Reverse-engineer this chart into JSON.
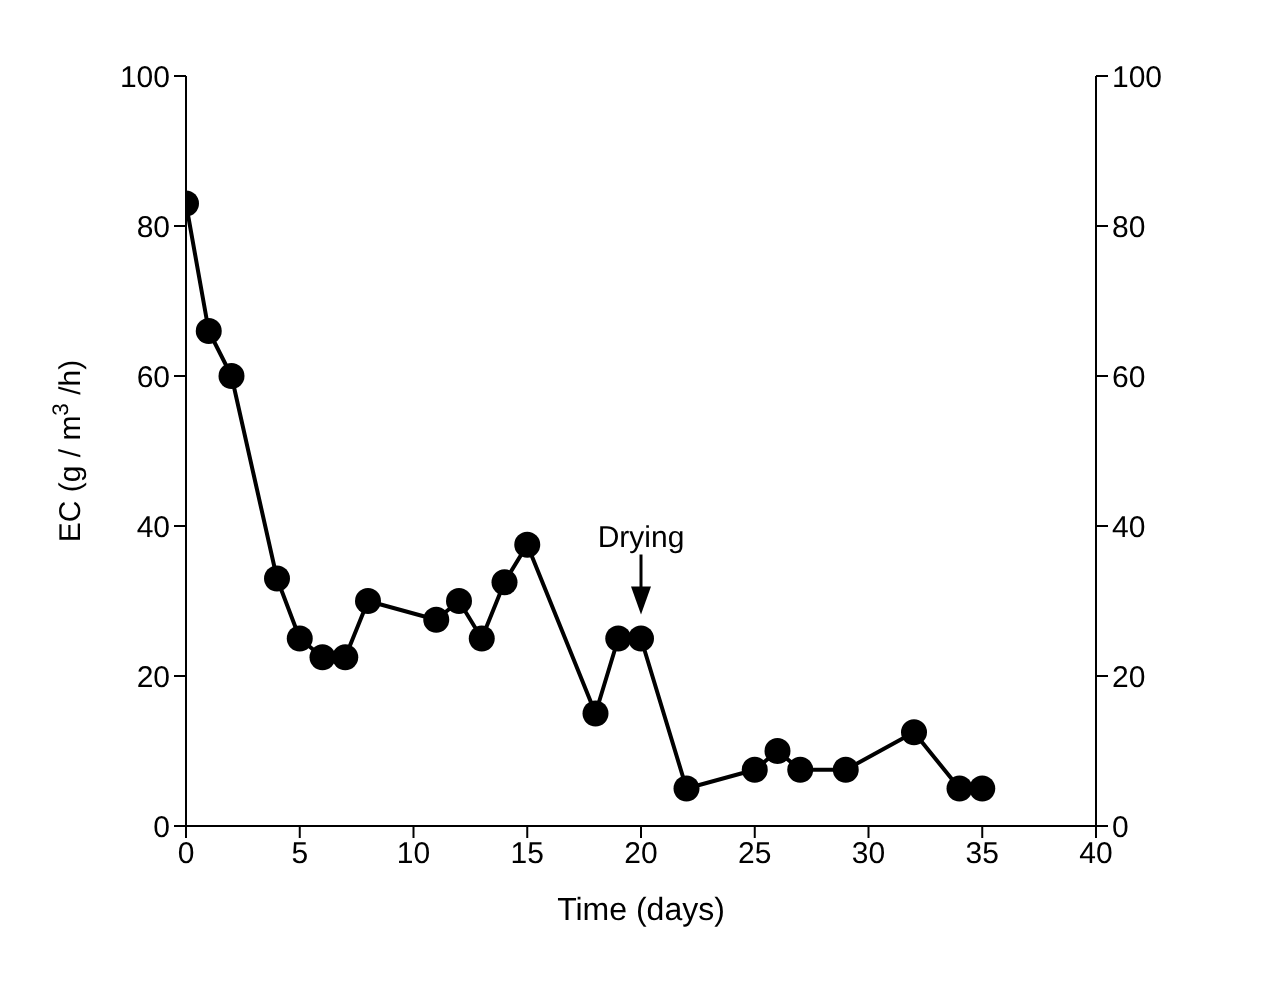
{
  "chart_data": {
    "type": "line",
    "xlabel": "Time (days)",
    "ylabel": "EC (g / m$^{3}$ /h)",
    "x": [
      0,
      1,
      2,
      4,
      5,
      6,
      7,
      8,
      11,
      12,
      13,
      14,
      15,
      18,
      19,
      20,
      22,
      25,
      26,
      27,
      29,
      32,
      34,
      35
    ],
    "series": [
      {
        "color": "#000000",
        "values": [
          83,
          66,
          60,
          33,
          25,
          22.5,
          22.5,
          30,
          27.5,
          30,
          25,
          32.5,
          37.5,
          15,
          25,
          25,
          5,
          7.5,
          10,
          7.5,
          7.5,
          12.5,
          5,
          5
        ]
      }
    ],
    "xlim": [
      0,
      40
    ],
    "xticks": [
      0,
      5,
      10,
      15,
      20,
      25,
      30,
      35,
      40
    ],
    "ylim": [
      0,
      100
    ],
    "yticks": [
      0,
      20,
      40,
      60,
      80,
      100
    ],
    "y2lim": [
      0,
      100
    ],
    "y2ticks": [
      0,
      20,
      40,
      60,
      80,
      100
    ],
    "annotations": [
      {
        "text": "Drying",
        "x": 20,
        "y": 25
      }
    ],
    "marker": "circle",
    "line_style": "solid"
  }
}
